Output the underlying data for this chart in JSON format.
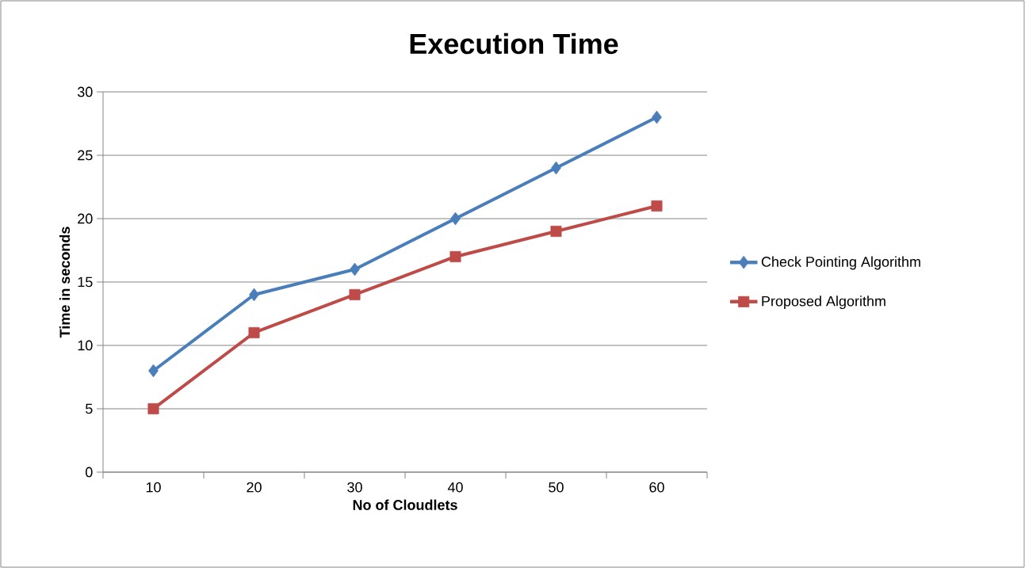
{
  "chart_data": {
    "type": "line",
    "title": "Execution Time",
    "xlabel": "No of Cloudlets",
    "ylabel": "Time in seconds",
    "categories": [
      "10",
      "20",
      "30",
      "40",
      "50",
      "60"
    ],
    "series": [
      {
        "name": "Check Pointing Algorithm",
        "color": "#4a7ebb",
        "marker": "diamond",
        "values": [
          8,
          14,
          16,
          20,
          24,
          28
        ]
      },
      {
        "name": "Proposed Algorithm",
        "color": "#be4b48",
        "marker": "square",
        "values": [
          5,
          11,
          14,
          17,
          19,
          21
        ]
      }
    ],
    "ylim": [
      0,
      30
    ],
    "yticks": [
      0,
      5,
      10,
      15,
      20,
      25,
      30
    ],
    "grid": "y",
    "legend": "right",
    "line_style": "solid"
  }
}
